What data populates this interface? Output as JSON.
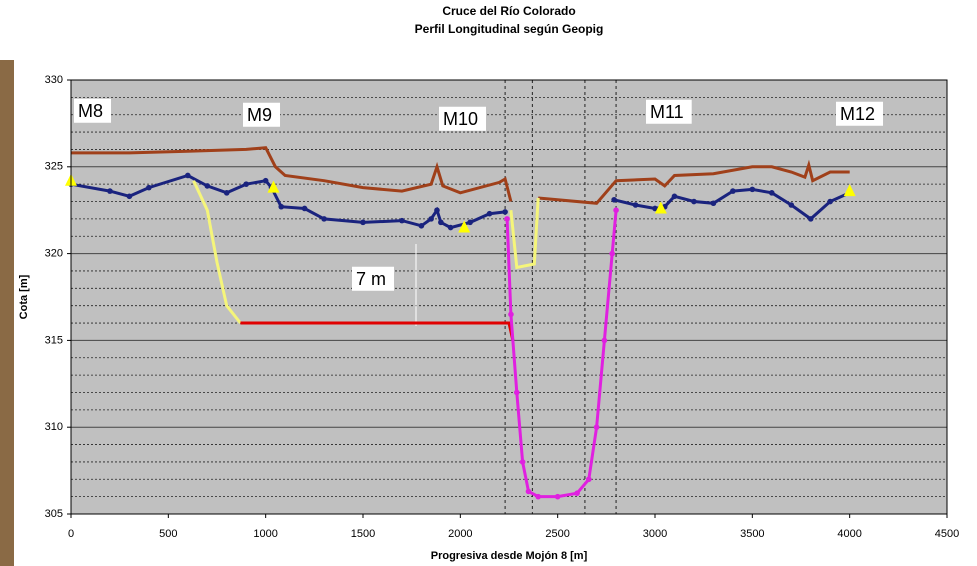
{
  "chart_data": {
    "type": "line",
    "title": "Cruce del Río Colorado",
    "subtitle": "Perfil Longitudinal según Geopig",
    "x_label": "Progresiva desde Mojón 8 [m]",
    "y_label": "Cota [m]",
    "xlim": [
      0,
      4500
    ],
    "xticks": [
      0,
      500,
      1000,
      1500,
      2000,
      2500,
      3000,
      3500,
      4000,
      4500
    ],
    "ylim": [
      305,
      330
    ],
    "yticks": [
      305,
      310,
      315,
      320,
      325,
      330
    ],
    "minor_yticks": [
      306,
      307,
      308,
      309,
      311,
      312,
      313,
      314,
      316,
      317,
      318,
      319,
      321,
      322,
      323,
      324,
      326,
      327,
      328,
      329
    ],
    "grid": true,
    "plot_background": "#c0c0c0",
    "vlines": [
      2230,
      2370,
      2640,
      2800
    ],
    "annotations": [
      "M8",
      "M9",
      "M10",
      "M11",
      "M12",
      "7 m"
    ],
    "series": [
      {
        "color": "#a0401a",
        "markers": false,
        "x": [
          0,
          300,
          600,
          900,
          1000,
          1050,
          1100,
          1300,
          1500,
          1700,
          1850,
          1880,
          1910,
          2000,
          2200,
          2230,
          2260,
          null,
          2400,
          2700,
          2800,
          3000,
          3050,
          3100,
          3300,
          3500,
          3600,
          3700,
          3770,
          3790,
          3810,
          3900,
          4000
        ],
        "values": [
          325.8,
          325.8,
          325.9,
          326.0,
          326.1,
          325.0,
          324.5,
          324.2,
          323.8,
          323.6,
          324.0,
          325.0,
          323.9,
          323.5,
          324.1,
          324.3,
          323.0,
          null,
          323.2,
          322.9,
          324.2,
          324.3,
          323.9,
          324.5,
          324.6,
          325.0,
          325.0,
          324.7,
          324.4,
          325.1,
          324.2,
          324.7,
          324.7
        ]
      },
      {
        "color": "#1a237e",
        "markers": true,
        "x": [
          0,
          200,
          300,
          400,
          600,
          700,
          800,
          900,
          1000,
          1030,
          1080,
          1200,
          1300,
          1500,
          1700,
          1800,
          1850,
          1880,
          1900,
          1950,
          2050,
          2150,
          2230,
          null,
          2790,
          2900,
          3000,
          3050,
          3100,
          3200,
          3300,
          3400,
          3500,
          3600,
          3700,
          3800,
          3900,
          4000
        ],
        "values": [
          324.0,
          323.6,
          323.3,
          323.8,
          324.5,
          323.9,
          323.5,
          324.0,
          324.2,
          323.8,
          322.7,
          322.6,
          322.0,
          321.8,
          321.9,
          321.6,
          322.0,
          322.5,
          321.8,
          321.5,
          321.8,
          322.3,
          322.4,
          null,
          323.1,
          322.8,
          322.6,
          322.7,
          323.3,
          323.0,
          322.9,
          323.6,
          323.7,
          323.5,
          322.8,
          322.0,
          323.0,
          323.5
        ]
      },
      {
        "color": "#f5f57a",
        "markers": false,
        "x": [
          630,
          700,
          750,
          800,
          870,
          null,
          2260,
          2290,
          2380,
          2400
        ],
        "values": [
          324.2,
          322.5,
          319.5,
          317.0,
          316.0,
          null,
          322.5,
          319.2,
          319.4,
          323.2
        ]
      },
      {
        "color": "#e00000",
        "markers": false,
        "x": [
          870,
          2250,
          2270
        ],
        "values": [
          316.0,
          316.0,
          315.0
        ]
      },
      {
        "color": "#e020e0",
        "markers": true,
        "x": [
          2240,
          2260,
          2290,
          2320,
          2350,
          2400,
          2500,
          2600,
          2660,
          2700,
          2740,
          2780,
          2800
        ],
        "values": [
          322.0,
          316.5,
          312.0,
          308.0,
          306.3,
          306.0,
          306.0,
          306.2,
          307.0,
          310.0,
          315.0,
          320.0,
          322.5
        ]
      },
      {
        "color": "#ffff00",
        "markers": "triangle",
        "line": false,
        "x": [
          0,
          1040,
          2020,
          3030,
          4000
        ],
        "values": [
          324.2,
          323.8,
          321.5,
          322.6,
          323.6
        ]
      }
    ]
  }
}
